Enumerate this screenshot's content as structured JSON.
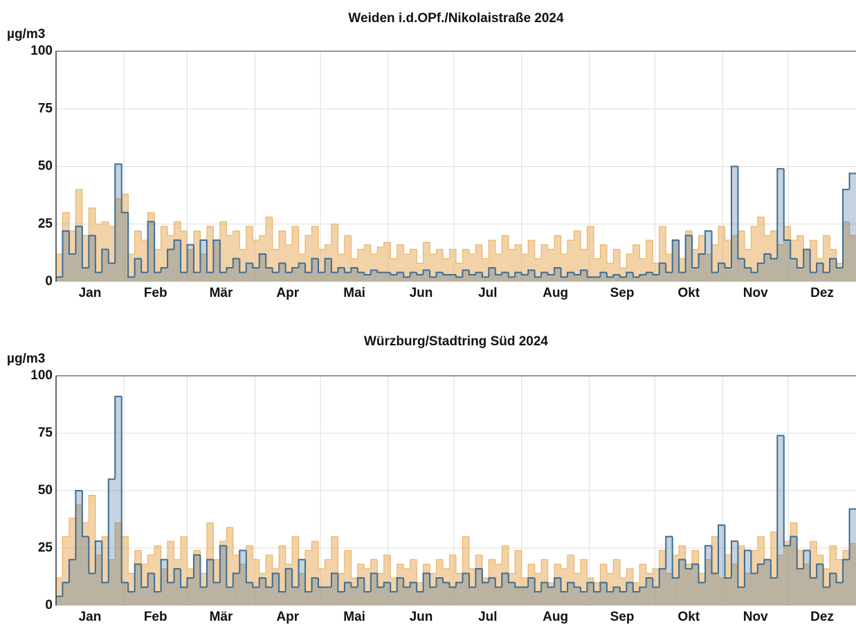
{
  "chart_data": [
    {
      "type": "step",
      "title": "Weiden i.d.OPf./Nikolaistraße 2024",
      "ylabel": "µg/m3",
      "x": [
        0,
        3,
        6,
        9,
        12,
        15,
        18,
        21,
        24,
        27,
        30,
        33,
        36,
        39,
        42,
        45,
        48,
        51,
        54,
        57,
        60,
        63,
        66,
        69,
        72,
        75,
        78,
        81,
        84,
        87,
        90,
        93,
        96,
        99,
        102,
        105,
        108,
        111,
        114,
        117,
        120,
        123,
        126,
        129,
        132,
        135,
        138,
        141,
        144,
        147,
        150,
        153,
        156,
        159,
        162,
        165,
        168,
        171,
        174,
        177,
        180,
        183,
        186,
        189,
        192,
        195,
        198,
        201,
        204,
        207,
        210,
        213,
        216,
        219,
        222,
        225,
        228,
        231,
        234,
        237,
        240,
        243,
        246,
        249,
        252,
        255,
        258,
        261,
        264,
        267,
        270,
        273,
        276,
        279,
        282,
        285,
        288,
        291,
        294,
        297,
        300,
        303,
        306,
        309,
        312,
        315,
        318,
        321,
        324,
        327,
        330,
        333,
        336,
        339,
        342,
        345,
        348,
        351,
        354,
        357,
        360,
        363
      ],
      "series": [
        {
          "color": "#e9b46a",
          "values": [
            12,
            30,
            22,
            40,
            20,
            32,
            25,
            26,
            24,
            36,
            38,
            12,
            22,
            18,
            30,
            14,
            24,
            20,
            26,
            22,
            14,
            22,
            12,
            24,
            18,
            26,
            20,
            22,
            14,
            24,
            18,
            20,
            28,
            14,
            22,
            16,
            24,
            12,
            20,
            24,
            14,
            16,
            25,
            12,
            20,
            10,
            14,
            16,
            12,
            15,
            17,
            10,
            16,
            12,
            14,
            8,
            17,
            12,
            14,
            10,
            14,
            8,
            14,
            12,
            16,
            10,
            18,
            12,
            20,
            14,
            16,
            12,
            18,
            10,
            16,
            14,
            20,
            12,
            18,
            22,
            14,
            24,
            10,
            16,
            8,
            14,
            6,
            12,
            16,
            10,
            18,
            8,
            24,
            12,
            18,
            10,
            22,
            14,
            20,
            12,
            16,
            24,
            18,
            20,
            22,
            14,
            24,
            28,
            20,
            22,
            16,
            24,
            18,
            20,
            14,
            18,
            10,
            20,
            14,
            8,
            26,
            20
          ]
        },
        {
          "color": "#3d6d95",
          "values": [
            2,
            22,
            12,
            24,
            6,
            20,
            4,
            14,
            8,
            51,
            30,
            2,
            10,
            4,
            26,
            4,
            6,
            14,
            18,
            4,
            16,
            4,
            18,
            4,
            18,
            4,
            6,
            10,
            4,
            8,
            6,
            12,
            6,
            4,
            8,
            4,
            6,
            8,
            4,
            10,
            4,
            10,
            4,
            6,
            4,
            6,
            4,
            3,
            5,
            4,
            4,
            3,
            4,
            2,
            4,
            3,
            5,
            2,
            4,
            3,
            3,
            2,
            5,
            3,
            4,
            2,
            6,
            3,
            4,
            2,
            4,
            3,
            5,
            2,
            4,
            3,
            6,
            2,
            4,
            3,
            5,
            2,
            2,
            4,
            2,
            3,
            2,
            4,
            2,
            3,
            4,
            3,
            8,
            4,
            18,
            4,
            20,
            6,
            12,
            22,
            4,
            8,
            6,
            50,
            10,
            6,
            4,
            8,
            12,
            10,
            49,
            18,
            10,
            6,
            14,
            4,
            8,
            4,
            10,
            6,
            40,
            47
          ]
        }
      ],
      "xlim": [
        0,
        366
      ],
      "xticks": [
        {
          "value": 0,
          "label": "Jan"
        },
        {
          "value": 31,
          "label": "Feb"
        },
        {
          "value": 60,
          "label": "Mär"
        },
        {
          "value": 91,
          "label": "Apr"
        },
        {
          "value": 121,
          "label": "Mai"
        },
        {
          "value": 152,
          "label": "Jun"
        },
        {
          "value": 182,
          "label": "Jul"
        },
        {
          "value": 213,
          "label": "Aug"
        },
        {
          "value": 244,
          "label": "Sep"
        },
        {
          "value": 274,
          "label": "Okt"
        },
        {
          "value": 305,
          "label": "Nov"
        },
        {
          "value": 335,
          "label": "Dez"
        }
      ],
      "ylim": [
        0,
        100
      ],
      "yticks": [
        0,
        25,
        50,
        75,
        100
      ],
      "grid": true
    },
    {
      "type": "step",
      "title": "Würzburg/Stadtring Süd 2024",
      "ylabel": "µg/m3",
      "x": [
        0,
        3,
        6,
        9,
        12,
        15,
        18,
        21,
        24,
        27,
        30,
        33,
        36,
        39,
        42,
        45,
        48,
        51,
        54,
        57,
        60,
        63,
        66,
        69,
        72,
        75,
        78,
        81,
        84,
        87,
        90,
        93,
        96,
        99,
        102,
        105,
        108,
        111,
        114,
        117,
        120,
        123,
        126,
        129,
        132,
        135,
        138,
        141,
        144,
        147,
        150,
        153,
        156,
        159,
        162,
        165,
        168,
        171,
        174,
        177,
        180,
        183,
        186,
        189,
        192,
        195,
        198,
        201,
        204,
        207,
        210,
        213,
        216,
        219,
        222,
        225,
        228,
        231,
        234,
        237,
        240,
        243,
        246,
        249,
        252,
        255,
        258,
        261,
        264,
        267,
        270,
        273,
        276,
        279,
        282,
        285,
        288,
        291,
        294,
        297,
        300,
        303,
        306,
        309,
        312,
        315,
        318,
        321,
        324,
        327,
        330,
        333,
        336,
        339,
        342,
        345,
        348,
        351,
        354,
        357,
        360,
        363
      ],
      "series": [
        {
          "color": "#e9b46a",
          "values": [
            12,
            30,
            38,
            44,
            36,
            48,
            22,
            30,
            20,
            36,
            30,
            14,
            24,
            18,
            22,
            26,
            16,
            28,
            20,
            30,
            16,
            24,
            14,
            36,
            20,
            28,
            34,
            22,
            18,
            26,
            20,
            14,
            22,
            16,
            26,
            18,
            30,
            14,
            24,
            28,
            16,
            20,
            30,
            14,
            24,
            12,
            18,
            16,
            20,
            14,
            22,
            12,
            18,
            16,
            20,
            10,
            18,
            14,
            20,
            16,
            22,
            14,
            30,
            16,
            22,
            12,
            20,
            18,
            26,
            14,
            24,
            12,
            18,
            14,
            20,
            10,
            18,
            16,
            22,
            14,
            20,
            12,
            10,
            18,
            14,
            20,
            12,
            16,
            10,
            18,
            14,
            16,
            24,
            14,
            22,
            26,
            18,
            24,
            14,
            20,
            30,
            12,
            22,
            18,
            26,
            14,
            24,
            30,
            20,
            32,
            22,
            28,
            36,
            24,
            18,
            28,
            22,
            16,
            26,
            20,
            24,
            27
          ]
        },
        {
          "color": "#3d6d95",
          "values": [
            4,
            10,
            20,
            50,
            30,
            14,
            28,
            10,
            55,
            91,
            10,
            6,
            18,
            8,
            14,
            6,
            20,
            10,
            16,
            8,
            12,
            22,
            8,
            20,
            10,
            26,
            8,
            14,
            24,
            10,
            8,
            12,
            8,
            14,
            6,
            16,
            8,
            20,
            6,
            12,
            8,
            8,
            14,
            6,
            10,
            8,
            12,
            6,
            14,
            8,
            10,
            6,
            12,
            8,
            10,
            6,
            14,
            8,
            12,
            10,
            8,
            10,
            14,
            8,
            16,
            10,
            12,
            8,
            14,
            10,
            8,
            8,
            12,
            6,
            10,
            8,
            12,
            6,
            10,
            8,
            6,
            10,
            6,
            10,
            6,
            8,
            6,
            10,
            6,
            8,
            12,
            8,
            16,
            30,
            12,
            20,
            16,
            18,
            10,
            26,
            14,
            35,
            12,
            28,
            8,
            24,
            14,
            18,
            20,
            12,
            74,
            26,
            30,
            16,
            24,
            12,
            18,
            8,
            14,
            10,
            20,
            42
          ]
        }
      ],
      "xlim": [
        0,
        366
      ],
      "xticks": [
        {
          "value": 0,
          "label": "Jan"
        },
        {
          "value": 31,
          "label": "Feb"
        },
        {
          "value": 60,
          "label": "Mär"
        },
        {
          "value": 91,
          "label": "Apr"
        },
        {
          "value": 121,
          "label": "Mai"
        },
        {
          "value": 152,
          "label": "Jun"
        },
        {
          "value": 182,
          "label": "Jul"
        },
        {
          "value": 213,
          "label": "Aug"
        },
        {
          "value": 244,
          "label": "Sep"
        },
        {
          "value": 274,
          "label": "Okt"
        },
        {
          "value": 305,
          "label": "Nov"
        },
        {
          "value": 335,
          "label": "Dez"
        }
      ],
      "ylim": [
        0,
        100
      ],
      "yticks": [
        0,
        25,
        50,
        75,
        100
      ],
      "grid": true
    }
  ]
}
